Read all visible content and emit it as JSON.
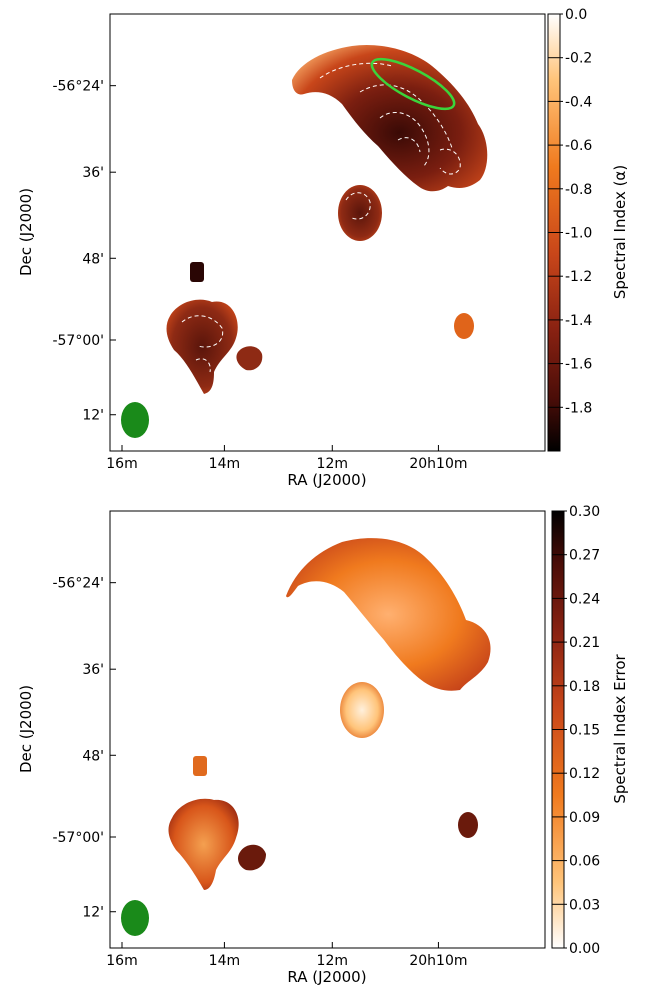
{
  "chart_data": [
    {
      "type": "heatmap",
      "title": "",
      "xlabel": "RA (J2000)",
      "ylabel": "Dec (J2000)",
      "x_ticks": [
        "16m",
        "14m",
        "12m",
        "20h10m"
      ],
      "y_ticks": [
        "-56°24'",
        "36'",
        "48'",
        "-57°00'",
        "12'"
      ],
      "colorbar": {
        "label": "Spectral Index (α)",
        "ticks": [
          "0.0",
          "-0.2",
          "-0.4",
          "-0.6",
          "-0.8",
          "-1.0",
          "-1.2",
          "-1.4",
          "-1.6",
          "-1.8"
        ],
        "range": [
          -2.0,
          0.0
        ],
        "colormap": "gist_heat"
      },
      "contours": "white dashed",
      "beam_color": "#1a8a1a",
      "highlight_ellipse_color": "#3bd43b",
      "grid": false
    },
    {
      "type": "heatmap",
      "title": "",
      "xlabel": "RA (J2000)",
      "ylabel": "Dec (J2000)",
      "x_ticks": [
        "16m",
        "14m",
        "12m",
        "20h10m"
      ],
      "y_ticks": [
        "-56°24'",
        "36'",
        "48'",
        "-57°00'",
        "12'"
      ],
      "colorbar": {
        "label": "Spectral Index Error",
        "ticks": [
          "0.30",
          "0.27",
          "0.24",
          "0.21",
          "0.18",
          "0.15",
          "0.12",
          "0.09",
          "0.06",
          "0.03",
          "0.00"
        ],
        "range": [
          0.0,
          0.3
        ],
        "colormap": "gist_heat_r"
      },
      "beam_color": "#1a8a1a",
      "grid": false
    }
  ]
}
